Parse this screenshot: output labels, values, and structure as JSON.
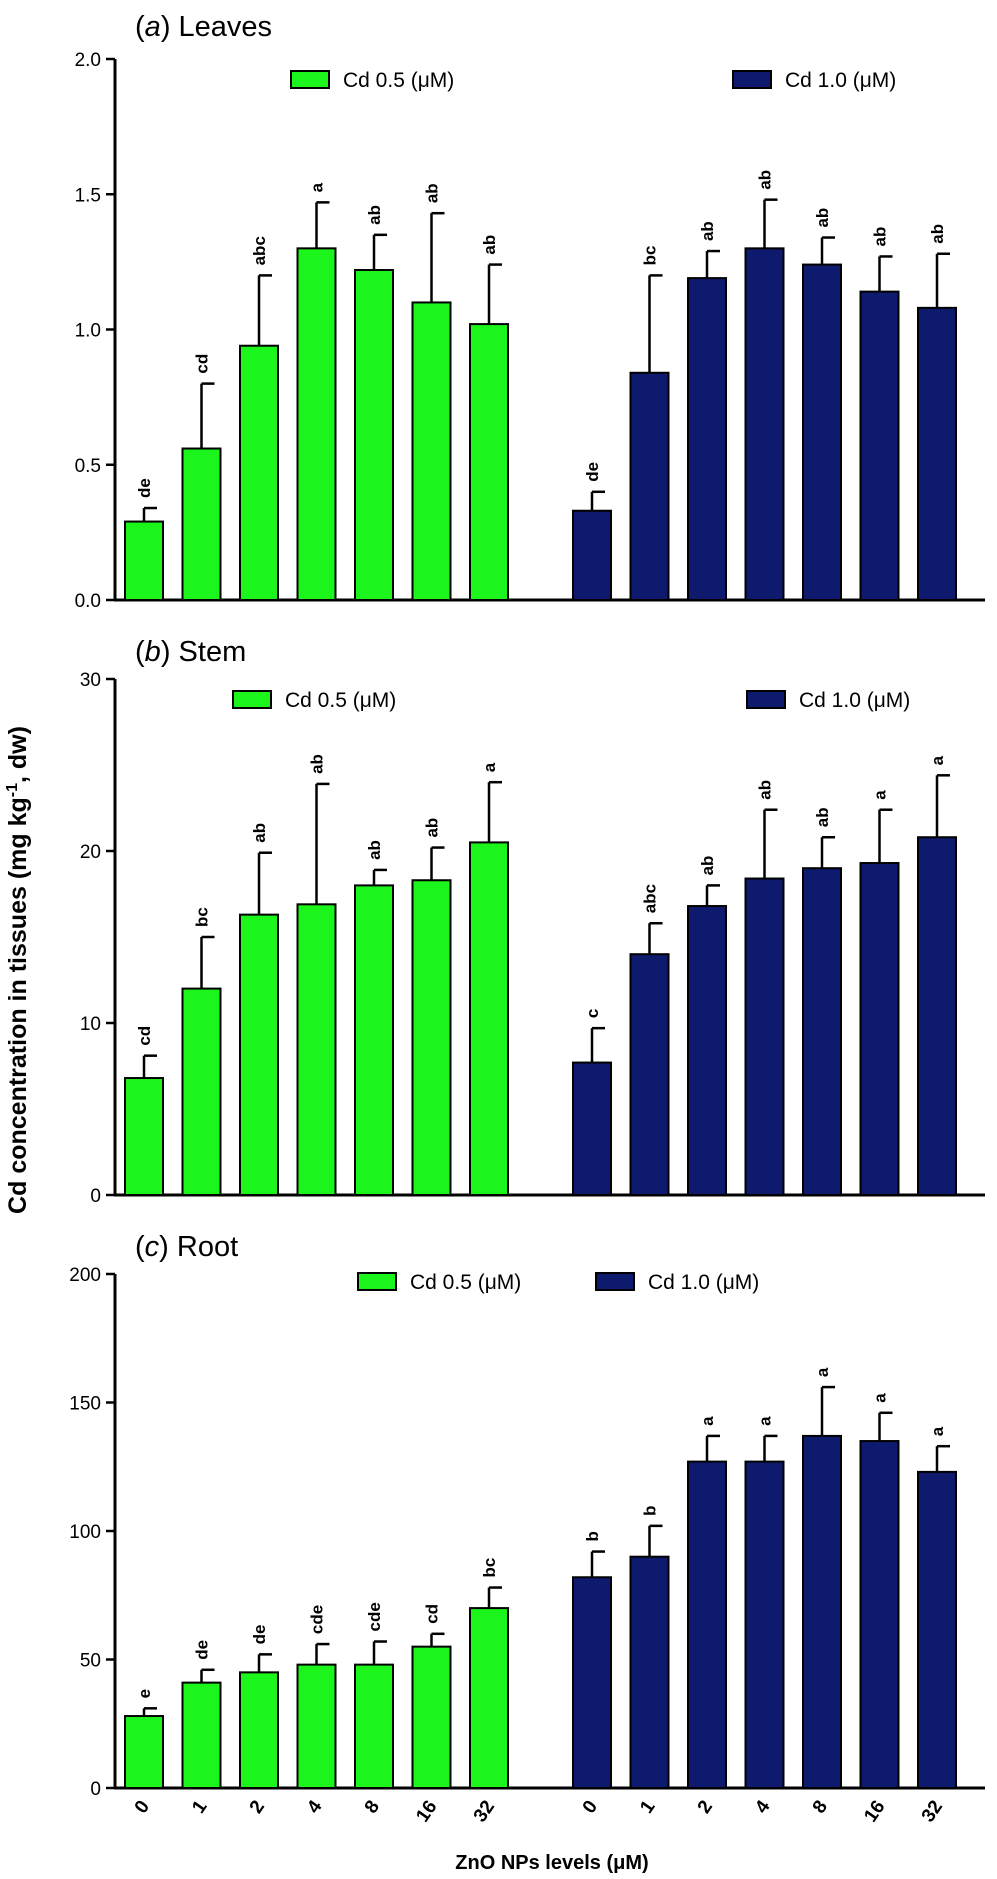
{
  "chart_data": [
    {
      "panel_letter": "a",
      "panel_name": " Leaves",
      "type": "bar",
      "ylim": [
        0,
        2.0
      ],
      "yticks": [
        "0.0",
        "0.5",
        "1.0",
        "1.5",
        "2.0"
      ],
      "categories": [
        "0",
        "1",
        "2",
        "4",
        "8",
        "16",
        "32"
      ],
      "legend_placement": "top",
      "series": [
        {
          "name": "Cd 0.5 (μM)",
          "color": "#1CF51C",
          "values": [
            0.29,
            0.56,
            0.94,
            1.3,
            1.22,
            1.1,
            1.02
          ],
          "errors": [
            0.05,
            0.24,
            0.26,
            0.17,
            0.13,
            0.33,
            0.22
          ],
          "letters": [
            "de",
            "cd",
            "abc",
            "a",
            "ab",
            "ab",
            "ab"
          ]
        },
        {
          "name": "Cd 1.0 (μM)",
          "color": "#0D1A6E",
          "values": [
            0.33,
            0.84,
            1.19,
            1.3,
            1.24,
            1.14,
            1.08
          ],
          "errors": [
            0.07,
            0.36,
            0.1,
            0.18,
            0.1,
            0.13,
            0.2
          ],
          "letters": [
            "de",
            "bc",
            "ab",
            "ab",
            "ab",
            "ab",
            "ab"
          ]
        }
      ]
    },
    {
      "panel_letter": "b",
      "panel_name": " Stem",
      "type": "bar",
      "ylim": [
        0,
        30
      ],
      "yticks": [
        "0",
        "10",
        "20",
        "30"
      ],
      "categories": [
        "0",
        "1",
        "2",
        "4",
        "8",
        "16",
        "32"
      ],
      "legend_placement": "top",
      "series": [
        {
          "name": "Cd 0.5 (μM)",
          "color": "#1CF51C",
          "values": [
            6.8,
            12.0,
            16.3,
            16.9,
            18.0,
            18.3,
            20.5
          ],
          "errors": [
            1.3,
            3.0,
            3.6,
            7.0,
            0.9,
            1.9,
            3.5
          ],
          "letters": [
            "cd",
            "bc",
            "ab",
            "ab",
            "ab",
            "ab",
            "a"
          ]
        },
        {
          "name": "Cd 1.0 (μM)",
          "color": "#0D1A6E",
          "values": [
            7.7,
            14.0,
            16.8,
            18.4,
            19.0,
            19.3,
            20.8
          ],
          "errors": [
            2.0,
            1.8,
            1.2,
            4.0,
            1.8,
            3.1,
            3.6
          ],
          "letters": [
            "c",
            "abc",
            "ab",
            "ab",
            "ab",
            "a",
            "a"
          ]
        }
      ]
    },
    {
      "panel_letter": "c",
      "panel_name": " Root",
      "type": "bar",
      "ylim": [
        0,
        200
      ],
      "yticks": [
        "0",
        "50",
        "100",
        "150",
        "200"
      ],
      "categories": [
        "0",
        "1",
        "2",
        "4",
        "8",
        "16",
        "32"
      ],
      "legend_placement": "top",
      "series": [
        {
          "name": "Cd 0.5 (μM)",
          "color": "#1CF51C",
          "values": [
            28,
            41,
            45,
            48,
            48,
            55,
            70
          ],
          "errors": [
            3,
            5,
            7,
            8,
            9,
            5,
            8
          ],
          "letters": [
            "e",
            "de",
            "de",
            "cde",
            "cde",
            "cd",
            "bc"
          ]
        },
        {
          "name": "Cd 1.0 (μM)",
          "color": "#0D1A6E",
          "values": [
            82,
            90,
            127,
            127,
            137,
            135,
            123
          ],
          "errors": [
            10,
            12,
            10,
            10,
            19,
            11,
            10
          ],
          "letters": [
            "b",
            "b",
            "a",
            "a",
            "a",
            "a",
            "a"
          ]
        }
      ]
    }
  ],
  "y_axis_title": {
    "prefix": "Cd concentration in tissues (mg kg",
    "superscript": "-1",
    "suffix": ", dw)"
  },
  "x_axis_title": "ZnO NPs levels (μM)"
}
